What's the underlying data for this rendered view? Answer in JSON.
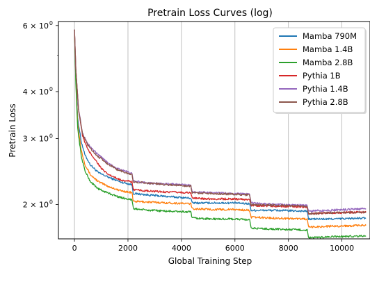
{
  "chart_data": {
    "type": "line",
    "title": "Pretrain Loss Curves (log)",
    "xlabel": "Global Training Step",
    "ylabel": "Pretrain Loss",
    "yscale": "log",
    "xlim": [
      -600,
      11050
    ],
    "ylim": [
      1.62,
      6.15
    ],
    "x_ticks": [
      0,
      2000,
      4000,
      6000,
      8000,
      10000
    ],
    "x_tick_labels": [
      "0",
      "2000",
      "4000",
      "6000",
      "8000",
      "10000"
    ],
    "y_ticks": [
      2,
      3,
      4,
      6
    ],
    "y_tick_labels": [
      {
        "base": "2 × 10",
        "exp": "0"
      },
      {
        "base": "3 × 10",
        "exp": "0"
      },
      {
        "base": "4 × 10",
        "exp": "0"
      },
      {
        "base": "6 × 10",
        "exp": "0"
      }
    ],
    "grid": {
      "vertical_lines": true,
      "horizontal_lines": false
    },
    "legend": {
      "placement": "top-right"
    },
    "series": [
      {
        "name": "Mamba 790M",
        "color": "#1f77b4",
        "points": [
          [
            0,
            5.85
          ],
          [
            50,
            4.4
          ],
          [
            120,
            3.4
          ],
          [
            250,
            2.95
          ],
          [
            400,
            2.7
          ],
          [
            600,
            2.55
          ],
          [
            900,
            2.43
          ],
          [
            1300,
            2.36
          ],
          [
            1700,
            2.3
          ],
          [
            2150,
            2.26
          ],
          [
            2200,
            2.14
          ],
          [
            2800,
            2.12
          ],
          [
            3500,
            2.1
          ],
          [
            4350,
            2.08
          ],
          [
            4400,
            2.02
          ],
          [
            5200,
            2.02
          ],
          [
            6000,
            2.02
          ],
          [
            6550,
            2.01
          ],
          [
            6600,
            1.93
          ],
          [
            7500,
            1.93
          ],
          [
            8700,
            1.92
          ],
          [
            8750,
            1.83
          ],
          [
            9500,
            1.83
          ],
          [
            10900,
            1.84
          ]
        ]
      },
      {
        "name": "Mamba 1.4B",
        "color": "#ff7f0e",
        "points": [
          [
            0,
            5.85
          ],
          [
            50,
            4.3
          ],
          [
            120,
            3.3
          ],
          [
            250,
            2.8
          ],
          [
            400,
            2.55
          ],
          [
            600,
            2.4
          ],
          [
            900,
            2.3
          ],
          [
            1300,
            2.23
          ],
          [
            1700,
            2.18
          ],
          [
            2150,
            2.15
          ],
          [
            2200,
            2.04
          ],
          [
            2800,
            2.03
          ],
          [
            3500,
            2.02
          ],
          [
            4350,
            2.01
          ],
          [
            4400,
            1.95
          ],
          [
            5200,
            1.94
          ],
          [
            6000,
            1.94
          ],
          [
            6550,
            1.93
          ],
          [
            6600,
            1.85
          ],
          [
            7500,
            1.84
          ],
          [
            8700,
            1.83
          ],
          [
            8750,
            1.74
          ],
          [
            9500,
            1.75
          ],
          [
            10900,
            1.76
          ]
        ]
      },
      {
        "name": "Mamba 2.8B",
        "color": "#2ca02c",
        "points": [
          [
            0,
            5.85
          ],
          [
            50,
            4.2
          ],
          [
            120,
            3.2
          ],
          [
            250,
            2.7
          ],
          [
            400,
            2.45
          ],
          [
            600,
            2.3
          ],
          [
            900,
            2.2
          ],
          [
            1300,
            2.14
          ],
          [
            1700,
            2.09
          ],
          [
            2150,
            2.06
          ],
          [
            2200,
            1.95
          ],
          [
            2800,
            1.93
          ],
          [
            3500,
            1.92
          ],
          [
            4350,
            1.91
          ],
          [
            4400,
            1.84
          ],
          [
            5200,
            1.83
          ],
          [
            6000,
            1.83
          ],
          [
            6550,
            1.82
          ],
          [
            6600,
            1.73
          ],
          [
            7500,
            1.72
          ],
          [
            8700,
            1.71
          ],
          [
            8750,
            1.63
          ],
          [
            9500,
            1.64
          ],
          [
            10900,
            1.65
          ]
        ]
      },
      {
        "name": "Pythia 1B",
        "color": "#d62728",
        "points": [
          [
            0,
            5.85
          ],
          [
            50,
            4.6
          ],
          [
            150,
            3.6
          ],
          [
            300,
            3.05
          ],
          [
            500,
            2.8
          ],
          [
            800,
            2.62
          ],
          [
            1000,
            2.5
          ],
          [
            1200,
            2.42
          ],
          [
            1500,
            2.36
          ],
          [
            1800,
            2.32
          ],
          [
            2150,
            2.3
          ],
          [
            2200,
            2.19
          ],
          [
            2800,
            2.17
          ],
          [
            3500,
            2.16
          ],
          [
            4350,
            2.15
          ],
          [
            4400,
            2.08
          ],
          [
            5200,
            2.07
          ],
          [
            6000,
            2.07
          ],
          [
            6550,
            2.06
          ],
          [
            6600,
            1.99
          ],
          [
            7500,
            1.98
          ],
          [
            8700,
            1.97
          ],
          [
            8750,
            1.89
          ],
          [
            9500,
            1.9
          ],
          [
            10900,
            1.91
          ]
        ]
      },
      {
        "name": "Pythia 1.4B",
        "color": "#9467bd",
        "points": [
          [
            0,
            5.85
          ],
          [
            50,
            4.6
          ],
          [
            150,
            3.62
          ],
          [
            300,
            3.1
          ],
          [
            500,
            2.9
          ],
          [
            800,
            2.75
          ],
          [
            1200,
            2.6
          ],
          [
            1600,
            2.5
          ],
          [
            2000,
            2.44
          ],
          [
            2150,
            2.42
          ],
          [
            2200,
            2.31
          ],
          [
            2800,
            2.28
          ],
          [
            3500,
            2.27
          ],
          [
            4350,
            2.25
          ],
          [
            4400,
            2.16
          ],
          [
            5200,
            2.15
          ],
          [
            6000,
            2.14
          ],
          [
            6550,
            2.13
          ],
          [
            6600,
            2.02
          ],
          [
            7500,
            2.0
          ],
          [
            8700,
            1.99
          ],
          [
            8750,
            1.92
          ],
          [
            9500,
            1.93
          ],
          [
            10900,
            1.95
          ]
        ]
      },
      {
        "name": "Pythia 2.8B",
        "color": "#8c564b",
        "points": [
          [
            0,
            5.85
          ],
          [
            50,
            4.6
          ],
          [
            150,
            3.6
          ],
          [
            300,
            3.08
          ],
          [
            500,
            2.88
          ],
          [
            800,
            2.72
          ],
          [
            1200,
            2.58
          ],
          [
            1600,
            2.48
          ],
          [
            2000,
            2.42
          ],
          [
            2150,
            2.4
          ],
          [
            2200,
            2.3
          ],
          [
            2800,
            2.28
          ],
          [
            3500,
            2.26
          ],
          [
            4350,
            2.24
          ],
          [
            4400,
            2.15
          ],
          [
            5200,
            2.14
          ],
          [
            6000,
            2.13
          ],
          [
            6550,
            2.12
          ],
          [
            6600,
            2.0
          ],
          [
            7500,
            1.99
          ],
          [
            8700,
            1.98
          ],
          [
            8750,
            1.89
          ],
          [
            9500,
            1.9
          ],
          [
            10900,
            1.91
          ]
        ]
      }
    ]
  }
}
